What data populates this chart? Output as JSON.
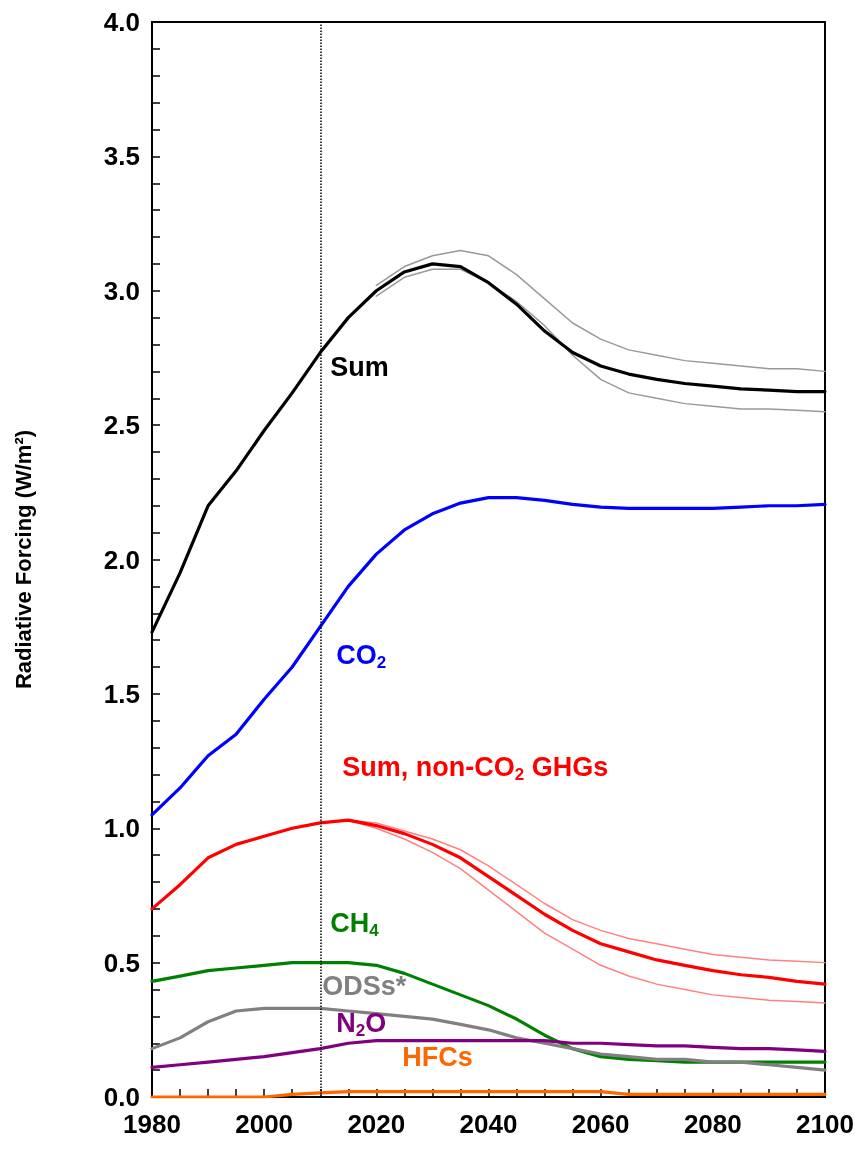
{
  "chart_data": {
    "type": "line",
    "ylabel": "Radiative Forcing (W/m²)",
    "x": [
      1980,
      1985,
      1990,
      1995,
      2000,
      2005,
      2010,
      2015,
      2020,
      2025,
      2030,
      2035,
      2040,
      2045,
      2050,
      2055,
      2060,
      2065,
      2070,
      2075,
      2080,
      2085,
      2090,
      2095,
      2100
    ],
    "series": [
      {
        "name": "Sum",
        "color": "#000000",
        "values": [
          1.73,
          1.95,
          2.2,
          2.33,
          2.48,
          2.62,
          2.77,
          2.9,
          3.0,
          3.07,
          3.1,
          3.09,
          3.03,
          2.95,
          2.85,
          2.77,
          2.72,
          2.69,
          2.67,
          2.655,
          2.645,
          2.635,
          2.63,
          2.625,
          2.625
        ]
      },
      {
        "color": "#999999",
        "values": [
          null,
          null,
          null,
          null,
          null,
          null,
          null,
          null,
          3.02,
          3.09,
          3.13,
          3.15,
          3.13,
          3.06,
          2.97,
          2.88,
          2.82,
          2.78,
          2.76,
          2.74,
          2.73,
          2.72,
          2.71,
          2.71,
          2.7
        ]
      },
      {
        "color": "#999999",
        "values": [
          null,
          null,
          null,
          null,
          null,
          null,
          null,
          null,
          2.98,
          3.05,
          3.08,
          3.08,
          3.03,
          2.96,
          2.87,
          2.76,
          2.67,
          2.62,
          2.6,
          2.58,
          2.57,
          2.56,
          2.56,
          2.555,
          2.55
        ]
      },
      {
        "name": "CO$_{2}$",
        "color": "#0000ff",
        "values": [
          1.05,
          1.15,
          1.27,
          1.35,
          1.48,
          1.6,
          1.75,
          1.9,
          2.02,
          2.11,
          2.17,
          2.21,
          2.23,
          2.23,
          2.22,
          2.205,
          2.195,
          2.19,
          2.19,
          2.19,
          2.19,
          2.195,
          2.2,
          2.2,
          2.205
        ]
      },
      {
        "name": "Sum, non-CO$_{2}$ GHGs",
        "color": "#ff0000",
        "values": [
          0.7,
          0.79,
          0.89,
          0.94,
          0.97,
          1.0,
          1.02,
          1.03,
          1.01,
          0.98,
          0.94,
          0.89,
          0.82,
          0.75,
          0.68,
          0.62,
          0.57,
          0.54,
          0.51,
          0.49,
          0.47,
          0.455,
          0.445,
          0.43,
          0.42
        ]
      },
      {
        "color": "#ff8080",
        "values": [
          null,
          null,
          null,
          null,
          null,
          null,
          null,
          1.03,
          1.02,
          0.99,
          0.96,
          0.92,
          0.86,
          0.79,
          0.72,
          0.66,
          0.62,
          0.59,
          0.57,
          0.55,
          0.53,
          0.52,
          0.51,
          0.505,
          0.5
        ]
      },
      {
        "color": "#ff8080",
        "values": [
          null,
          null,
          null,
          null,
          null,
          null,
          null,
          1.03,
          1.0,
          0.96,
          0.91,
          0.85,
          0.77,
          0.69,
          0.61,
          0.55,
          0.49,
          0.45,
          0.42,
          0.4,
          0.38,
          0.37,
          0.36,
          0.355,
          0.35
        ]
      },
      {
        "name": "CH$_{4}$",
        "color": "#008000",
        "values": [
          0.43,
          0.45,
          0.47,
          0.48,
          0.49,
          0.5,
          0.5,
          0.5,
          0.49,
          0.46,
          0.42,
          0.38,
          0.34,
          0.29,
          0.23,
          0.18,
          0.15,
          0.14,
          0.135,
          0.13,
          0.13,
          0.13,
          0.13,
          0.13,
          0.13
        ]
      },
      {
        "name": "ODSs*",
        "color": "#808080",
        "values": [
          0.18,
          0.22,
          0.28,
          0.32,
          0.33,
          0.33,
          0.33,
          0.32,
          0.31,
          0.3,
          0.29,
          0.27,
          0.25,
          0.22,
          0.2,
          0.18,
          0.16,
          0.15,
          0.14,
          0.14,
          0.13,
          0.13,
          0.12,
          0.11,
          0.1
        ]
      },
      {
        "name": "N$_{2}$O",
        "color": "#800080",
        "values": [
          0.11,
          0.12,
          0.13,
          0.14,
          0.15,
          0.165,
          0.18,
          0.2,
          0.21,
          0.21,
          0.21,
          0.21,
          0.21,
          0.21,
          0.21,
          0.2,
          0.2,
          0.195,
          0.19,
          0.19,
          0.185,
          0.18,
          0.18,
          0.175,
          0.17
        ]
      },
      {
        "name": "HFCs",
        "color": "#ff6600",
        "values": [
          0,
          0,
          0,
          0,
          0,
          0.01,
          0.015,
          0.02,
          0.02,
          0.02,
          0.02,
          0.02,
          0.02,
          0.02,
          0.02,
          0.02,
          0.02,
          0.01,
          0.01,
          0.01,
          0.01,
          0.01,
          0.01,
          0.01,
          0.01
        ]
      }
    ],
    "xlim": [
      1980,
      2100
    ],
    "xticks": [
      1980,
      {
        "value": 1985,
        "label": null
      },
      {
        "value": 1990,
        "label": null
      },
      {
        "value": 1995,
        "label": null
      },
      2000,
      {
        "value": 2005,
        "label": null
      },
      {
        "value": 2010,
        "label": null
      },
      {
        "value": 2015,
        "label": null
      },
      2020,
      {
        "value": 2025,
        "label": null
      },
      {
        "value": 2030,
        "label": null
      },
      {
        "value": 2035,
        "label": null
      },
      2040,
      {
        "value": 2045,
        "label": null
      },
      {
        "value": 2050,
        "label": null
      },
      {
        "value": 2055,
        "label": null
      },
      2060,
      {
        "value": 2065,
        "label": null
      },
      {
        "value": 2070,
        "label": null
      },
      {
        "value": 2075,
        "label": null
      },
      2080,
      {
        "value": 2085,
        "label": null
      },
      {
        "value": 2090,
        "label": null
      },
      {
        "value": 2095,
        "label": null
      },
      2100
    ],
    "ylim": [
      0,
      4
    ],
    "yticks": [
      {
        "value": 0,
        "label": "0.0"
      },
      {
        "value": 0.1,
        "label": null
      },
      {
        "value": 0.2,
        "label": null
      },
      {
        "value": 0.3,
        "label": null
      },
      {
        "value": 0.4,
        "label": null
      },
      0.5,
      {
        "value": 0.6,
        "label": null
      },
      {
        "value": 0.7,
        "label": null
      },
      {
        "value": 0.8,
        "label": null
      },
      {
        "value": 0.9,
        "label": null
      },
      {
        "value": 1,
        "label": "1.0"
      },
      {
        "value": 1.1,
        "label": null
      },
      {
        "value": 1.2,
        "label": null
      },
      {
        "value": 1.3,
        "label": null
      },
      {
        "value": 1.4,
        "label": null
      },
      1.5,
      {
        "value": 1.6,
        "label": null
      },
      {
        "value": 1.7,
        "label": null
      },
      {
        "value": 1.8,
        "label": null
      },
      {
        "value": 1.9,
        "label": null
      },
      {
        "value": 2,
        "label": "2.0"
      },
      {
        "value": 2.1,
        "label": null
      },
      {
        "value": 2.2,
        "label": null
      },
      {
        "value": 2.3,
        "label": null
      },
      {
        "value": 2.4,
        "label": null
      },
      2.5,
      {
        "value": 2.6,
        "label": null
      },
      {
        "value": 2.7,
        "label": null
      },
      {
        "value": 2.8,
        "label": null
      },
      {
        "value": 2.9,
        "label": null
      },
      {
        "value": 3,
        "label": "3.0"
      },
      {
        "value": 3.1,
        "label": null
      },
      {
        "value": 3.2,
        "label": null
      },
      {
        "value": 3.3,
        "label": null
      },
      {
        "value": 3.4,
        "label": null
      },
      3.5,
      {
        "value": 3.6,
        "label": null
      },
      {
        "value": 3.7,
        "label": null
      },
      {
        "value": 3.8,
        "label": null
      },
      {
        "value": 3.9,
        "label": null
      },
      {
        "value": 4,
        "label": "4.0"
      }
    ],
    "ref_lines": [
      {
        "axis": "x",
        "value": 2010,
        "color": "#000000",
        "line_style": "dotted"
      }
    ],
    "grid": false,
    "legend": false,
    "marker": "none",
    "line_style": "solid"
  }
}
